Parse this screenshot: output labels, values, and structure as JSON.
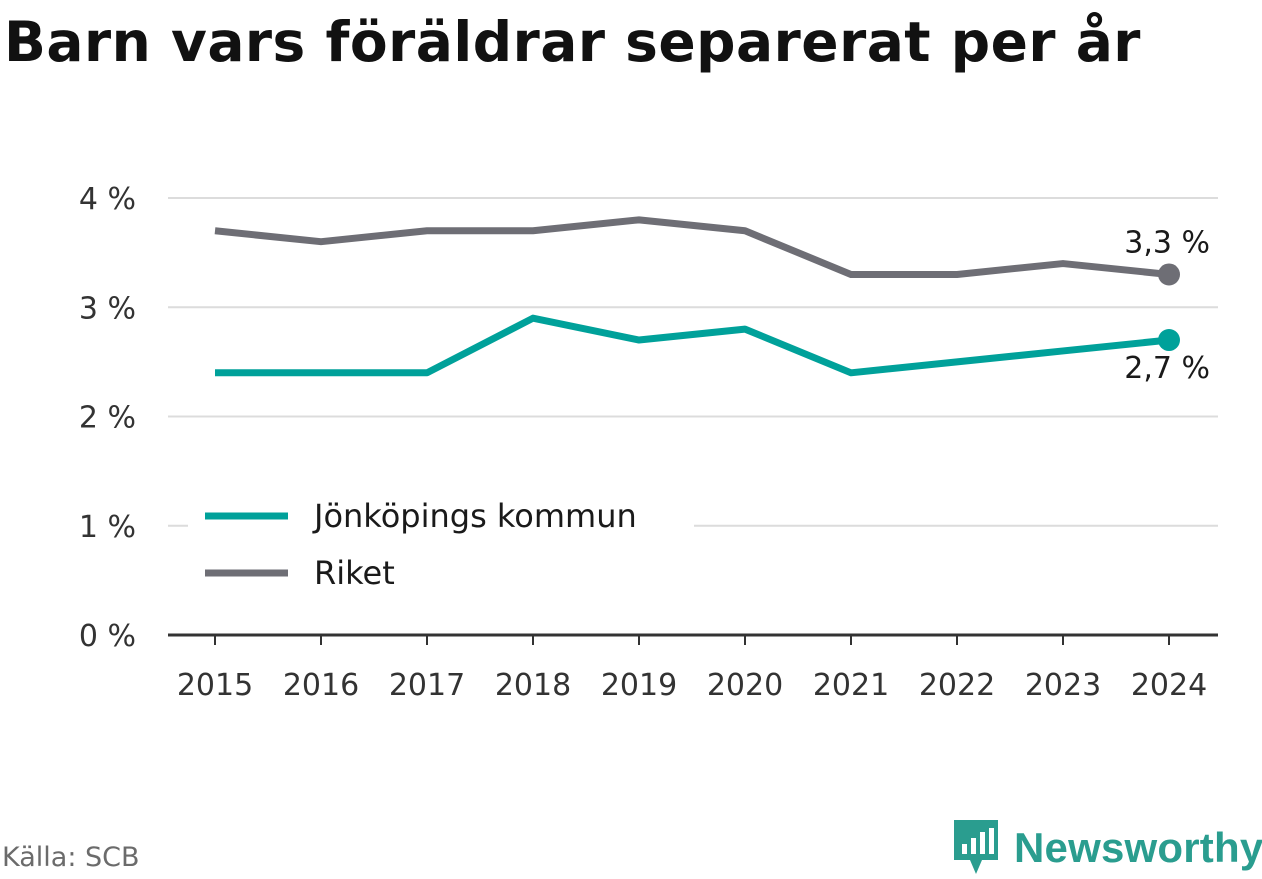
{
  "title": "Barn vars föräldrar separerat per år",
  "source": "Källa: SCB",
  "brand": {
    "name": "Newsworthy",
    "icon": "newsworthy-logo-icon",
    "color": "#2a9d8f"
  },
  "chart_data": {
    "type": "line",
    "title": "Barn vars föräldrar separerat per år",
    "x": [
      "2015",
      "2016",
      "2017",
      "2018",
      "2019",
      "2020",
      "2021",
      "2022",
      "2023",
      "2024"
    ],
    "series": [
      {
        "name": "Jönköpings kommun",
        "color": "#00a19a",
        "values": [
          2.4,
          2.4,
          2.4,
          2.9,
          2.7,
          2.8,
          2.4,
          2.5,
          2.6,
          2.7
        ],
        "end_label": "2,7 %"
      },
      {
        "name": "Riket",
        "color": "#6e6e75",
        "values": [
          3.7,
          3.6,
          3.7,
          3.7,
          3.8,
          3.7,
          3.3,
          3.3,
          3.4,
          3.3
        ],
        "end_label": "3,3 %"
      }
    ],
    "yticks": [
      0,
      1,
      2,
      3,
      4
    ],
    "ytick_labels": [
      "0 %",
      "1 %",
      "2 %",
      "3 %",
      "4 %"
    ],
    "ylim": [
      0,
      4
    ],
    "xlabel": "",
    "ylabel": "",
    "grid": true,
    "legend_position": "lower-left"
  }
}
